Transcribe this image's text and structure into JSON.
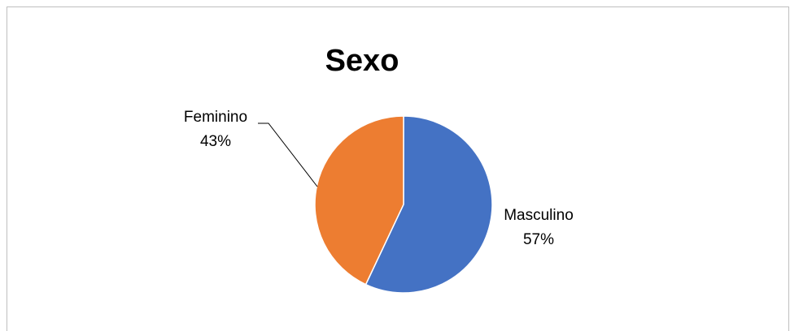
{
  "chart_data": {
    "type": "pie",
    "title": "Sexo",
    "start_angle_deg": 0,
    "direction": "clockwise",
    "slices": [
      {
        "label": "Masculino",
        "value": 57,
        "value_text": "57%",
        "color": "#4472C4"
      },
      {
        "label": "Feminino",
        "value": 43,
        "value_text": "43%",
        "color": "#ED7D31"
      }
    ],
    "legend": "none"
  }
}
